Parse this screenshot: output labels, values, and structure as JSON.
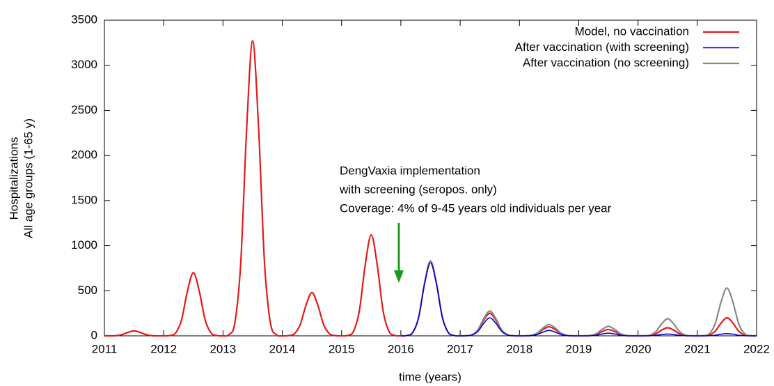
{
  "chart_data": {
    "type": "line",
    "y_label": [
      "Hospitalizations",
      "All age groups (1-65 y)"
    ],
    "x_label": "time (years)",
    "annotation": [
      "DengVaxia implementation",
      "with screening  (seropos. only)",
      "Coverage: 4% of 9-45 years old individuals per year"
    ],
    "xlim": [
      2011,
      2022
    ],
    "xticks": [
      2011,
      2012,
      2013,
      2014,
      2015,
      2016,
      2017,
      2018,
      2019,
      2020,
      2021,
      2022
    ],
    "ylim": [
      0,
      3500
    ],
    "yticks": [
      0,
      500,
      1000,
      1500,
      2000,
      2500,
      3000,
      3500
    ],
    "grid": false,
    "legend": "top-right",
    "x": [
      2011,
      2011.1,
      2011.2,
      2011.3,
      2011.4,
      2011.5,
      2011.6,
      2011.7,
      2011.8,
      2011.9,
      2012,
      2012.1,
      2012.2,
      2012.3,
      2012.4,
      2012.5,
      2012.6,
      2012.7,
      2012.8,
      2012.9,
      2013,
      2013.1,
      2013.2,
      2013.3,
      2013.4,
      2013.5,
      2013.6,
      2013.7,
      2013.8,
      2013.9,
      2014,
      2014.1,
      2014.2,
      2014.3,
      2014.4,
      2014.5,
      2014.6,
      2014.7,
      2014.8,
      2014.9,
      2015,
      2015.1,
      2015.2,
      2015.3,
      2015.4,
      2015.5,
      2015.6,
      2015.7,
      2015.8,
      2015.9,
      2016,
      2016.1,
      2016.2,
      2016.3,
      2016.4,
      2016.5,
      2016.6,
      2016.7,
      2016.8,
      2016.9,
      2017,
      2017.1,
      2017.2,
      2017.3,
      2017.4,
      2017.5,
      2017.6,
      2017.7,
      2017.8,
      2017.9,
      2018,
      2018.1,
      2018.2,
      2018.3,
      2018.4,
      2018.5,
      2018.6,
      2018.7,
      2018.8,
      2018.9,
      2019,
      2019.1,
      2019.2,
      2019.3,
      2019.4,
      2019.5,
      2019.6,
      2019.7,
      2019.8,
      2019.9,
      2020,
      2020.1,
      2020.2,
      2020.3,
      2020.4,
      2020.5,
      2020.6,
      2020.7,
      2020.8,
      2020.9,
      2021,
      2021.1,
      2021.2,
      2021.3,
      2021.4,
      2021.5,
      2021.6,
      2021.7,
      2021.8,
      2021.9,
      2022
    ],
    "series": [
      {
        "name": "Model, no vaccination",
        "color": "#e41a1c",
        "values": [
          0,
          0,
          2,
          14,
          39,
          55,
          39,
          14,
          2,
          0,
          0,
          3,
          31,
          174,
          495,
          700,
          495,
          174,
          31,
          3,
          0,
          13,
          144,
          814,
          2312,
          3270,
          2312,
          814,
          144,
          13,
          0,
          2,
          21,
          120,
          339,
          480,
          339,
          120,
          21,
          2,
          0,
          4,
          49,
          279,
          792,
          1120,
          792,
          279,
          49,
          4,
          0,
          3,
          37,
          207,
          587,
          830,
          587,
          207,
          37,
          3,
          0,
          1,
          11,
          62,
          177,
          250,
          177,
          62,
          11,
          1,
          0,
          0,
          4,
          25,
          71,
          100,
          71,
          25,
          4,
          0,
          0,
          0,
          3,
          17,
          49,
          70,
          49,
          17,
          3,
          0,
          0,
          0,
          4,
          22,
          64,
          90,
          64,
          22,
          4,
          0,
          0,
          1,
          9,
          50,
          141,
          200,
          141,
          50,
          9,
          1,
          0
        ]
      },
      {
        "name": "After vaccination (with screening)",
        "color": "#0000cc",
        "values": [
          null,
          null,
          null,
          null,
          null,
          null,
          null,
          null,
          null,
          null,
          null,
          null,
          null,
          null,
          null,
          null,
          null,
          null,
          null,
          null,
          null,
          null,
          null,
          null,
          null,
          null,
          null,
          null,
          null,
          null,
          null,
          null,
          null,
          null,
          null,
          null,
          null,
          null,
          null,
          null,
          null,
          null,
          null,
          null,
          null,
          null,
          null,
          null,
          null,
          null,
          0,
          3,
          36,
          202,
          573,
          810,
          573,
          202,
          36,
          3,
          0,
          1,
          9,
          50,
          141,
          200,
          141,
          50,
          9,
          1,
          0,
          0,
          3,
          15,
          42,
          60,
          42,
          15,
          3,
          0,
          0,
          0,
          1,
          7,
          21,
          30,
          21,
          7,
          1,
          0,
          0,
          0,
          1,
          5,
          14,
          20,
          14,
          5,
          1,
          0,
          0,
          0,
          1,
          6,
          18,
          25,
          18,
          6,
          1,
          0,
          0
        ]
      },
      {
        "name": "After vaccination (no screening)",
        "color": "#888888",
        "values": [
          null,
          null,
          null,
          null,
          null,
          null,
          null,
          null,
          null,
          null,
          null,
          null,
          null,
          null,
          null,
          null,
          null,
          null,
          null,
          null,
          null,
          null,
          null,
          null,
          null,
          null,
          null,
          null,
          null,
          null,
          null,
          null,
          null,
          null,
          null,
          null,
          null,
          null,
          null,
          null,
          null,
          null,
          null,
          null,
          null,
          null,
          null,
          null,
          null,
          null,
          0,
          3,
          37,
          207,
          587,
          830,
          587,
          207,
          37,
          3,
          0,
          1,
          12,
          68,
          194,
          275,
          194,
          68,
          12,
          1,
          0,
          1,
          6,
          31,
          88,
          125,
          88,
          31,
          6,
          1,
          0,
          0,
          5,
          26,
          74,
          105,
          74,
          26,
          5,
          0,
          0,
          1,
          8,
          47,
          134,
          190,
          134,
          47,
          8,
          1,
          0,
          2,
          23,
          132,
          375,
          530,
          375,
          132,
          23,
          2,
          0
        ]
      }
    ]
  }
}
